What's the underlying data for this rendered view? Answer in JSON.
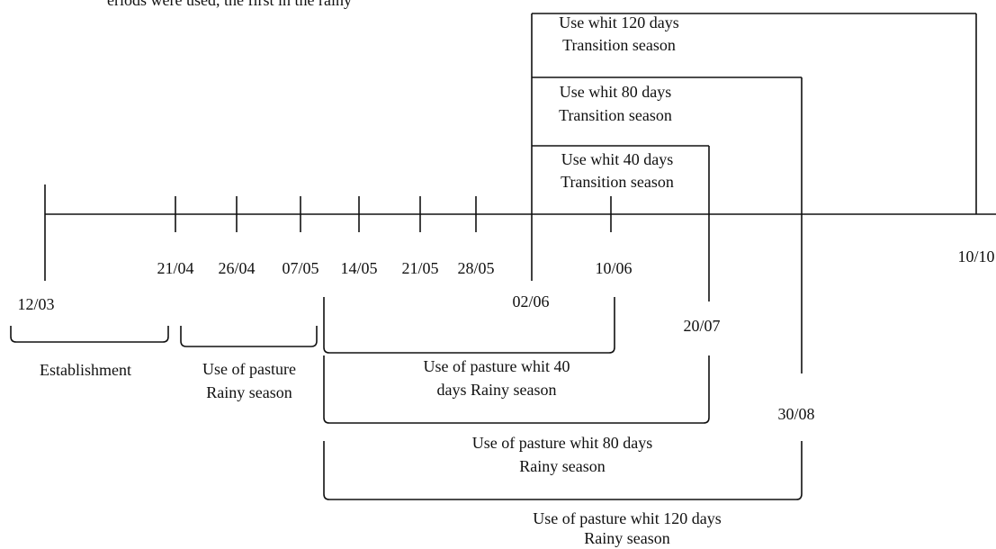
{
  "header_text": "eriods were used, the first in the rainy",
  "dates": [
    "12/03",
    "21/04",
    "26/04",
    "07/05",
    "14/05",
    "21/05",
    "28/05",
    "02/06",
    "10/06",
    "20/07",
    "30/08",
    "10/10"
  ],
  "transition_periods": [
    {
      "line1": "Use whit 120 days",
      "line2": "Transition season"
    },
    {
      "line1": "Use whit 80 days",
      "line2": "Transition season"
    },
    {
      "line1": "Use whit 40 days",
      "line2": "Transition season"
    }
  ],
  "phases": [
    {
      "line1": "Establishment"
    },
    {
      "line1": "Use of pasture",
      "line2": "Rainy season"
    },
    {
      "line1": "Use of pasture whit 40",
      "line2": "days Rainy season"
    },
    {
      "line1": "Use of pasture whit 80 days",
      "line2": "Rainy season"
    },
    {
      "line1": "Use of pasture whit 120 days",
      "line2": "Rainy season"
    }
  ]
}
